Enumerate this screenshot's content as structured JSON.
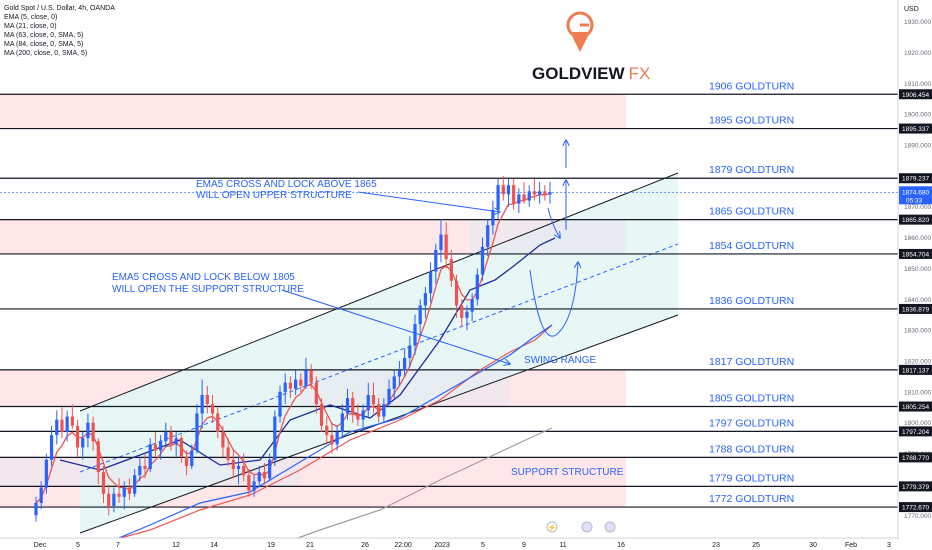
{
  "header": {
    "symbol_line": "Gold Spot / U.S. Dollar, 4h, OANDA",
    "indicators": [
      "EMA (5, close, 0)",
      "MA (21, close, 0)",
      "MA (63, close, 0, SMA, 5)",
      "MA (84, close, 0, SMA, 5)",
      "MA (200, close, 0, SMA, 5)"
    ]
  },
  "logo": {
    "text_main": "GOLDVIEW",
    "text_accent": "FX",
    "accent_color": "#f07c52"
  },
  "colors": {
    "up": "#2962ff",
    "down": "#ef5350",
    "ema": "#ef5350",
    "ma_blue": "#1e2b9b",
    "ma_mid": "#2962ff",
    "ma_grey": "#9e9e9e",
    "annotation": "#2962ff",
    "level_label": "#2962ff",
    "zone_red": "#ffe6e9",
    "zone_teal": "#e2f6f5",
    "zone_grey": "#e8e8ee"
  },
  "chart_data": {
    "type": "candlestick",
    "currency": "USD",
    "ylim": [
      1762,
      1937
    ],
    "y_ticks": [
      1930,
      1920,
      1910,
      1900,
      1890,
      1880,
      1870,
      1860,
      1850,
      1840,
      1830,
      1820,
      1810,
      1800,
      1790,
      1780,
      1770
    ],
    "x_ticks": [
      "Dec",
      "5",
      "7",
      "12",
      "14",
      "19",
      "21",
      "26",
      "22:00",
      "2023",
      "5",
      "9",
      "11",
      "16",
      "23",
      "25",
      "30",
      "Feb",
      "3"
    ],
    "levels": [
      {
        "price": 1906.454,
        "label": "1906 GOLDTURN",
        "tag": "1906.454"
      },
      {
        "price": 1895.337,
        "label": "1895 GOLDTURN",
        "tag": "1895.337"
      },
      {
        "price": 1879.237,
        "label": "1879 GOLDTURN",
        "tag": "1879.237"
      },
      {
        "price": 1865.82,
        "label": "1865 GOLDTURN",
        "tag": "1865.820"
      },
      {
        "price": 1854.704,
        "label": "1854 GOLDTURN",
        "tag": "1854.704"
      },
      {
        "price": 1836.879,
        "label": "1836 GOLDTURN",
        "tag": "1836.879"
      },
      {
        "price": 1817.137,
        "label": "1817 GOLDTURN",
        "tag": "1817.137"
      },
      {
        "price": 1805.254,
        "label": "1805 GOLDTURN",
        "tag": "1805.254"
      },
      {
        "price": 1797.204,
        "label": "1797 GOLDTURN",
        "tag": "1797.204"
      },
      {
        "price": 1788.77,
        "label": "1788 GOLDTURN",
        "tag": "1788.770"
      },
      {
        "price": 1779.379,
        "label": "1779 GOLDTURN",
        "tag": "1779.379"
      },
      {
        "price": 1772.67,
        "label": "1772 GOLDTURN",
        "tag": "1772.670"
      }
    ],
    "current_price": {
      "value": "1874.680",
      "countdown": "05:33"
    },
    "zones": [
      {
        "kind": "red",
        "top": 1906.454,
        "bottom": 1895.337
      },
      {
        "kind": "red",
        "top": 1865.82,
        "bottom": 1854.704
      },
      {
        "kind": "red",
        "top": 1817.137,
        "bottom": 1805.254
      },
      {
        "kind": "red",
        "top": 1788.77,
        "bottom": 1772.67
      }
    ],
    "annotations": [
      {
        "lines": [
          "EMA5 CROSS AND LOCK ABOVE 1865",
          "WILL OPEN UPPER STRUCTURE"
        ]
      },
      {
        "lines": [
          "EMA5 CROSS AND LOCK BELOW 1805",
          "WILL OPEN THE SUPPORT STRUCTURE"
        ]
      },
      {
        "lines": [
          "SWING RANGE"
        ]
      },
      {
        "lines": [
          "SUPPORT STRUCTURE"
        ]
      }
    ],
    "candles": [
      [
        1770,
        1776,
        1768,
        1774
      ],
      [
        1774,
        1781,
        1772,
        1779
      ],
      [
        1779,
        1790,
        1777,
        1788
      ],
      [
        1788,
        1799,
        1786,
        1796
      ],
      [
        1796,
        1804,
        1793,
        1801
      ],
      [
        1801,
        1805,
        1795,
        1797
      ],
      [
        1797,
        1804,
        1794,
        1802
      ],
      [
        1802,
        1806,
        1798,
        1799
      ],
      [
        1799,
        1801,
        1789,
        1792
      ],
      [
        1792,
        1797,
        1788,
        1795
      ],
      [
        1795,
        1803,
        1792,
        1800
      ],
      [
        1800,
        1802,
        1791,
        1794
      ],
      [
        1794,
        1795,
        1780,
        1784
      ],
      [
        1784,
        1786,
        1774,
        1777
      ],
      [
        1777,
        1780,
        1770,
        1773
      ],
      [
        1773,
        1779,
        1771,
        1777
      ],
      [
        1777,
        1782,
        1774,
        1776
      ],
      [
        1776,
        1781,
        1772,
        1779
      ],
      [
        1779,
        1782,
        1775,
        1777
      ],
      [
        1777,
        1785,
        1776,
        1783
      ],
      [
        1783,
        1789,
        1781,
        1786
      ],
      [
        1786,
        1790,
        1782,
        1785
      ],
      [
        1785,
        1795,
        1784,
        1793
      ],
      [
        1793,
        1797,
        1789,
        1791
      ],
      [
        1791,
        1796,
        1788,
        1794
      ],
      [
        1794,
        1800,
        1792,
        1797
      ],
      [
        1797,
        1799,
        1791,
        1793
      ],
      [
        1793,
        1797,
        1789,
        1795
      ],
      [
        1795,
        1796,
        1787,
        1789
      ],
      [
        1789,
        1791,
        1783,
        1786
      ],
      [
        1786,
        1793,
        1785,
        1791
      ],
      [
        1791,
        1806,
        1790,
        1803
      ],
      [
        1803,
        1814,
        1798,
        1809
      ],
      [
        1809,
        1812,
        1803,
        1806
      ],
      [
        1806,
        1809,
        1800,
        1803
      ],
      [
        1803,
        1805,
        1795,
        1797
      ],
      [
        1797,
        1799,
        1789,
        1792
      ],
      [
        1792,
        1795,
        1786,
        1788
      ],
      [
        1788,
        1791,
        1782,
        1785
      ],
      [
        1785,
        1789,
        1780,
        1786
      ],
      [
        1786,
        1790,
        1781,
        1783
      ],
      [
        1783,
        1785,
        1776,
        1778
      ],
      [
        1778,
        1783,
        1776,
        1781
      ],
      [
        1781,
        1786,
        1779,
        1784
      ],
      [
        1784,
        1787,
        1780,
        1782
      ],
      [
        1782,
        1790,
        1781,
        1788
      ],
      [
        1788,
        1804,
        1786,
        1802
      ],
      [
        1802,
        1812,
        1800,
        1810
      ],
      [
        1810,
        1816,
        1806,
        1813
      ],
      [
        1813,
        1815,
        1808,
        1811
      ],
      [
        1811,
        1817,
        1809,
        1814
      ],
      [
        1814,
        1816,
        1810,
        1812
      ],
      [
        1812,
        1821,
        1811,
        1817
      ],
      [
        1817,
        1819,
        1811,
        1813
      ],
      [
        1813,
        1815,
        1803,
        1806
      ],
      [
        1806,
        1808,
        1797,
        1799
      ],
      [
        1799,
        1802,
        1793,
        1796
      ],
      [
        1796,
        1800,
        1790,
        1793
      ],
      [
        1793,
        1799,
        1791,
        1797
      ],
      [
        1797,
        1806,
        1795,
        1803
      ],
      [
        1803,
        1811,
        1801,
        1808
      ],
      [
        1808,
        1810,
        1800,
        1803
      ],
      [
        1803,
        1806,
        1799,
        1801
      ],
      [
        1801,
        1806,
        1797,
        1804
      ],
      [
        1804,
        1813,
        1802,
        1809
      ],
      [
        1809,
        1813,
        1803,
        1806
      ],
      [
        1806,
        1808,
        1800,
        1802
      ],
      [
        1802,
        1808,
        1800,
        1806
      ],
      [
        1806,
        1814,
        1805,
        1811
      ],
      [
        1811,
        1817,
        1808,
        1815
      ],
      [
        1815,
        1820,
        1812,
        1817
      ],
      [
        1817,
        1824,
        1815,
        1821
      ],
      [
        1821,
        1828,
        1818,
        1825
      ],
      [
        1825,
        1835,
        1822,
        1832
      ],
      [
        1832,
        1840,
        1828,
        1838
      ],
      [
        1838,
        1844,
        1834,
        1842
      ],
      [
        1842,
        1852,
        1839,
        1849
      ],
      [
        1849,
        1858,
        1845,
        1856
      ],
      [
        1856,
        1866,
        1852,
        1861
      ],
      [
        1861,
        1865,
        1850,
        1853
      ],
      [
        1853,
        1856,
        1844,
        1846
      ],
      [
        1846,
        1848,
        1834,
        1838
      ],
      [
        1838,
        1840,
        1831,
        1834
      ],
      [
        1834,
        1838,
        1830,
        1836
      ],
      [
        1836,
        1842,
        1833,
        1840
      ],
      [
        1840,
        1850,
        1838,
        1848
      ],
      [
        1848,
        1860,
        1846,
        1857
      ],
      [
        1857,
        1866,
        1854,
        1864
      ],
      [
        1864,
        1872,
        1861,
        1869
      ],
      [
        1869,
        1879,
        1866,
        1877
      ],
      [
        1877,
        1880,
        1872,
        1874
      ],
      [
        1874,
        1879,
        1870,
        1877
      ],
      [
        1877,
        1879,
        1869,
        1871
      ],
      [
        1871,
        1876,
        1868,
        1874
      ],
      [
        1874,
        1878,
        1871,
        1872
      ],
      [
        1872,
        1877,
        1870,
        1875
      ],
      [
        1875,
        1879,
        1872,
        1874
      ],
      [
        1874,
        1878,
        1871,
        1875
      ],
      [
        1875,
        1877,
        1872,
        1874
      ],
      [
        1874,
        1878,
        1871,
        1874.68
      ]
    ]
  }
}
